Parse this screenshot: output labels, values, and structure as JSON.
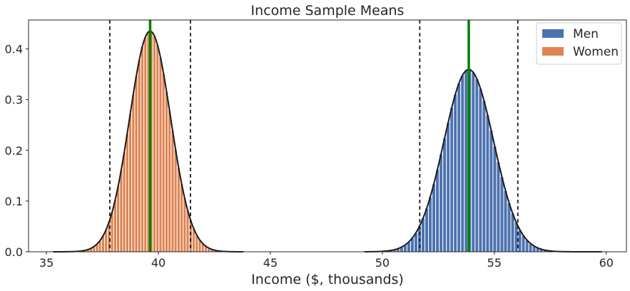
{
  "chart_data": {
    "type": "bar",
    "title": "Income Sample Means",
    "xlabel": "Income ($, thousands)",
    "ylabel": "",
    "xlim": [
      34.2,
      60.9
    ],
    "ylim": [
      0,
      0.457
    ],
    "xticks": [
      35,
      40,
      45,
      50,
      55,
      60
    ],
    "yticks": [
      0.0,
      0.1,
      0.2,
      0.3,
      0.4
    ],
    "grid": false,
    "legend_position": "top-right",
    "series": [
      {
        "name": "Men",
        "color": "#4c72b0",
        "distribution": {
          "mean": 53.86,
          "std": 1.11
        },
        "histogram_range": [
          49.5,
          59.7
        ],
        "bin_width": 0.16,
        "mean_line": 53.86,
        "ci_lines": [
          51.67,
          56.05
        ],
        "curve_range": [
          49.2,
          59.8
        ]
      },
      {
        "name": "Women",
        "color": "#dd8452",
        "distribution": {
          "mean": 39.63,
          "std": 0.917
        },
        "histogram_range": [
          35.3,
          43.5
        ],
        "bin_width": 0.135,
        "mean_line": 39.63,
        "ci_lines": [
          37.83,
          41.43
        ],
        "curve_range": [
          35.3,
          43.8
        ]
      }
    ],
    "mean_line_color": "#008000",
    "ci_line_color": "#1a1a1a",
    "curve_color": "#1a1a1a"
  }
}
